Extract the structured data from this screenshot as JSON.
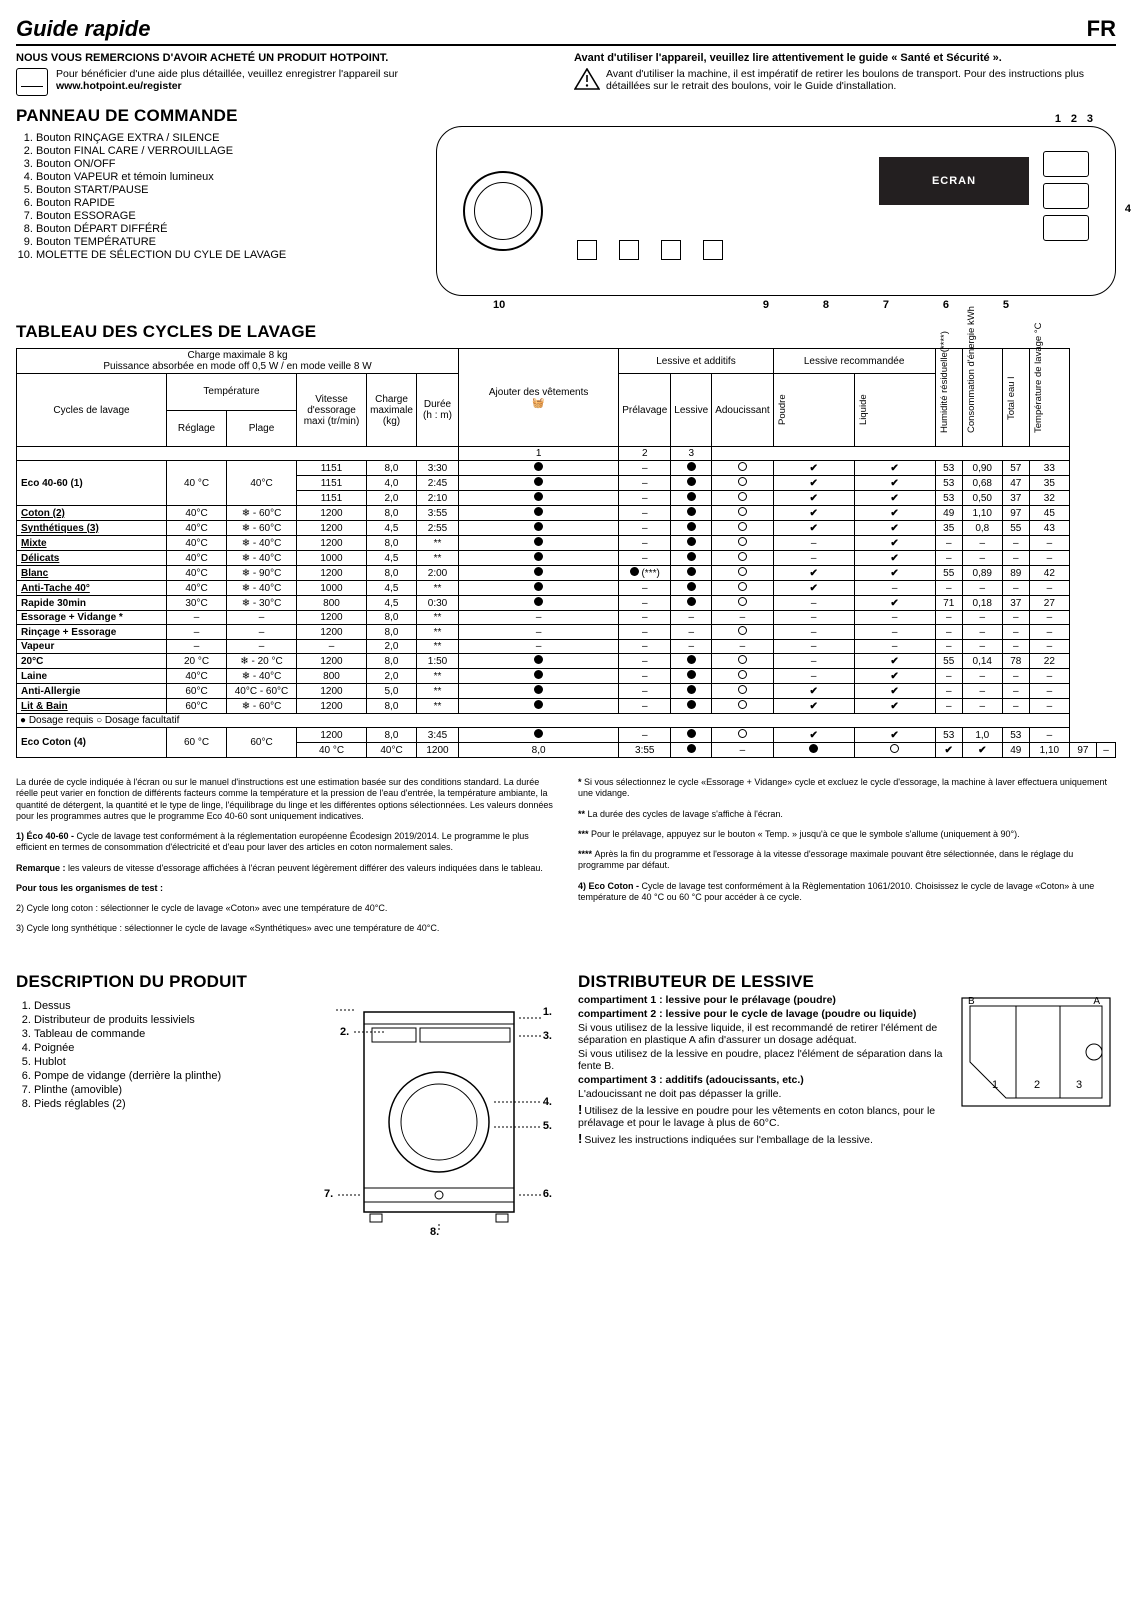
{
  "header": {
    "title": "Guide rapide",
    "lang": "FR"
  },
  "thanks": {
    "line1": "NOUS VOUS REMERCIONS D'AVOIR ACHETÉ UN PRODUIT HOTPOINT.",
    "reg_text": "Pour bénéficier d'une aide plus détaillée, veuillez enregistrer l'appareil sur",
    "reg_url": "www.hotpoint.eu/register"
  },
  "warning": {
    "title": "Avant d'utiliser l'appareil, veuillez lire attentivement le guide « Santé et Sécurité ».",
    "text": "Avant d'utiliser la machine, il est impératif de retirer les boulons de transport. Pour des instructions plus détaillées sur le retrait des boulons, voir le Guide d'installation."
  },
  "panel": {
    "title": "PANNEAU DE COMMANDE",
    "screen_label": "ECRAN",
    "items": [
      "Bouton RINÇAGE EXTRA / SILENCE",
      "Bouton FINAL CARE / VERROUILLAGE",
      "Bouton ON/OFF",
      "Bouton VAPEUR et témoin lumineux",
      "Bouton START/PAUSE",
      "Bouton RAPIDE",
      "Bouton ESSORAGE",
      "Bouton DÉPART DIFFÉRÉ",
      "Bouton TEMPÉRATURE",
      "MOLETTE DE SÉLECTION DU CYLE DE LAVAGE"
    ]
  },
  "cycles_title": "TABLEAU DES CYCLES DE LAVAGE",
  "table": {
    "max_load": "Charge maximale 8 kg",
    "power": "Puissance absorbée en mode off 0,5 W / en mode veille 8 W",
    "h_cycles": "Cycles de lavage",
    "h_temp": "Température",
    "h_temp_set": "Réglage",
    "h_temp_range": "Plage",
    "h_spin": "Vitesse d'essorage maxi (tr/min)",
    "h_load": "Charge maximale (kg)",
    "h_dur": "Durée (h : m)",
    "h_add": "Ajouter des vêtements",
    "h_det_group": "Lessive et additifs",
    "h_pre": "Prélavage",
    "h_main": "Lessive",
    "h_soft": "Adoucissant",
    "h_rec_group": "Lessive recommandée",
    "h_pow": "Poudre",
    "h_liq": "Liquide",
    "h_hum": "Humidité résiduelle(****)",
    "h_energy": "Consommation d'énergie kWh",
    "h_water": "Total eau l",
    "h_wtemp": "Température de lavage °C",
    "c1": "1",
    "c2": "2",
    "c3": "3",
    "legend": "● Dosage requis   ○ Dosage facultatif",
    "rows": [
      {
        "name": "Eco 40-60 (1)",
        "rowspan": 3,
        "t": "40 °C",
        "tr": "40°C",
        "spin": "1151",
        "load": "8,0",
        "dur": "3:30",
        "add": "dot",
        "pre": "–",
        "main": "dot",
        "soft": "circ",
        "pow": "chk",
        "liq": "chk",
        "hum": "53",
        "en": "0,90",
        "wat": "57",
        "wt": "33"
      },
      {
        "name": "",
        "t": "",
        "tr": "",
        "spin": "1151",
        "load": "4,0",
        "dur": "2:45",
        "add": "dot",
        "pre": "–",
        "main": "dot",
        "soft": "circ",
        "pow": "chk",
        "liq": "chk",
        "hum": "53",
        "en": "0,68",
        "wat": "47",
        "wt": "35"
      },
      {
        "name": "",
        "t": "",
        "tr": "",
        "spin": "1151",
        "load": "2,0",
        "dur": "2:10",
        "add": "dot",
        "pre": "–",
        "main": "dot",
        "soft": "circ",
        "pow": "chk",
        "liq": "chk",
        "hum": "53",
        "en": "0,50",
        "wat": "37",
        "wt": "32"
      },
      {
        "name": "Coton (2)",
        "u": true,
        "t": "40°C",
        "tr": "❄ - 60°C",
        "spin": "1200",
        "load": "8,0",
        "dur": "3:55",
        "add": "dot",
        "pre": "–",
        "main": "dot",
        "soft": "circ",
        "pow": "chk",
        "liq": "chk",
        "hum": "49",
        "en": "1,10",
        "wat": "97",
        "wt": "45"
      },
      {
        "name": "Synthétiques (3)",
        "u": true,
        "t": "40°C",
        "tr": "❄ - 60°C",
        "spin": "1200",
        "load": "4,5",
        "dur": "2:55",
        "add": "dot",
        "pre": "–",
        "main": "dot",
        "soft": "circ",
        "pow": "chk",
        "liq": "chk",
        "hum": "35",
        "en": "0,8",
        "wat": "55",
        "wt": "43"
      },
      {
        "name": "Mixte",
        "u": true,
        "t": "40°C",
        "tr": "❄ - 40°C",
        "spin": "1200",
        "load": "8,0",
        "dur": "**",
        "add": "dot",
        "pre": "–",
        "main": "dot",
        "soft": "circ",
        "pow": "–",
        "liq": "chk",
        "hum": "–",
        "en": "–",
        "wat": "–",
        "wt": "–"
      },
      {
        "name": "Délicats",
        "u": true,
        "t": "40°C",
        "tr": "❄ - 40°C",
        "spin": "1000",
        "load": "4,5",
        "dur": "**",
        "add": "dot",
        "pre": "–",
        "main": "dot",
        "soft": "circ",
        "pow": "–",
        "liq": "chk",
        "hum": "–",
        "en": "–",
        "wat": "–",
        "wt": "–"
      },
      {
        "name": "Blanc",
        "u": true,
        "t": "40°C",
        "tr": "❄ - 90°C",
        "spin": "1200",
        "load": "8,0",
        "dur": "2:00",
        "add": "dot",
        "pre": "dot***",
        "main": "dot",
        "soft": "circ",
        "pow": "chk",
        "liq": "chk",
        "hum": "55",
        "en": "0,89",
        "wat": "89",
        "wt": "42"
      },
      {
        "name": "Anti-Tache 40°",
        "u": true,
        "t": "40°C",
        "tr": "❄ - 40°C",
        "spin": "1000",
        "load": "4,5",
        "dur": "**",
        "add": "dot",
        "pre": "–",
        "main": "dot",
        "soft": "circ",
        "pow": "chk",
        "liq": "–",
        "hum": "–",
        "en": "–",
        "wat": "–",
        "wt": "–"
      },
      {
        "name": "Rapide 30min",
        "t": "30°C",
        "tr": "❄ - 30°C",
        "spin": "800",
        "load": "4,5",
        "dur": "0:30",
        "add": "dot",
        "pre": "–",
        "main": "dot",
        "soft": "circ",
        "pow": "–",
        "liq": "chk",
        "hum": "71",
        "en": "0,18",
        "wat": "37",
        "wt": "27"
      },
      {
        "name": "Essorage + Vidange *",
        "t": "–",
        "tr": "–",
        "spin": "1200",
        "load": "8,0",
        "dur": "**",
        "add": "–",
        "pre": "–",
        "main": "–",
        "soft": "–",
        "pow": "–",
        "liq": "–",
        "hum": "–",
        "en": "–",
        "wat": "–",
        "wt": "–"
      },
      {
        "name": "Rinçage + Essorage",
        "t": "–",
        "tr": "–",
        "spin": "1200",
        "load": "8,0",
        "dur": "**",
        "add": "–",
        "pre": "–",
        "main": "–",
        "soft": "circ",
        "pow": "–",
        "liq": "–",
        "hum": "–",
        "en": "–",
        "wat": "–",
        "wt": "–"
      },
      {
        "name": "Vapeur",
        "t": "–",
        "tr": "–",
        "spin": "–",
        "load": "2,0",
        "dur": "**",
        "add": "–",
        "pre": "–",
        "main": "–",
        "soft": "–",
        "pow": "–",
        "liq": "–",
        "hum": "–",
        "en": "–",
        "wat": "–",
        "wt": "–"
      },
      {
        "name": "20°C",
        "t": "20 °C",
        "tr": "❄ - 20 °C",
        "spin": "1200",
        "load": "8,0",
        "dur": "1:50",
        "add": "dot",
        "pre": "–",
        "main": "dot",
        "soft": "circ",
        "pow": "–",
        "liq": "chk",
        "hum": "55",
        "en": "0,14",
        "wat": "78",
        "wt": "22"
      },
      {
        "name": "Laine",
        "t": "40°C",
        "tr": "❄ - 40°C",
        "spin": "800",
        "load": "2,0",
        "dur": "**",
        "add": "dot",
        "pre": "–",
        "main": "dot",
        "soft": "circ",
        "pow": "–",
        "liq": "chk",
        "hum": "–",
        "en": "–",
        "wat": "–",
        "wt": "–"
      },
      {
        "name": "Anti-Allergie",
        "t": "60°C",
        "tr": "40°C - 60°C",
        "spin": "1200",
        "load": "5,0",
        "dur": "**",
        "add": "dot",
        "pre": "–",
        "main": "dot",
        "soft": "circ",
        "pow": "chk",
        "liq": "chk",
        "hum": "–",
        "en": "–",
        "wat": "–",
        "wt": "–"
      },
      {
        "name": "Lit & Bain",
        "u": true,
        "t": "60°C",
        "tr": "❄ - 60°C",
        "spin": "1200",
        "load": "8,0",
        "dur": "**",
        "add": "dot",
        "pre": "–",
        "main": "dot",
        "soft": "circ",
        "pow": "chk",
        "liq": "chk",
        "hum": "–",
        "en": "–",
        "wat": "–",
        "wt": "–"
      },
      {
        "name": "Eco Coton (4)",
        "rowspan": 2,
        "t": "60 °C",
        "tr": "60°C",
        "spin": "1200",
        "load": "8,0",
        "dur": "3:45",
        "add": "dot",
        "pre": "–",
        "main": "dot",
        "soft": "circ",
        "pow": "chk",
        "liq": "chk",
        "hum": "53",
        "en": "1,0",
        "wat": "53",
        "wt": "–"
      },
      {
        "name": "",
        "t": "40 °C",
        "tr": "40°C",
        "spin": "1200",
        "load": "8,0",
        "dur": "3:55",
        "add": "dot",
        "pre": "–",
        "main": "dot",
        "soft": "circ",
        "pow": "chk",
        "liq": "chk",
        "hum": "49",
        "en": "1,10",
        "wat": "97",
        "wt": "–"
      }
    ]
  },
  "foot_left": {
    "p1": "La durée de cycle indiquée à l'écran ou sur le manuel d'instructions est une estimation basée sur des conditions standard. La durée réelle peut varier en fonction de différents facteurs comme la température et la pression de l'eau d'entrée, la température ambiante, la quantité de détergent, la quantité et le type de linge, l'équilibrage du linge et les différentes options sélectionnées. Les valeurs données pour les programmes autres que le programme Eco 40-60 sont uniquement indicatives.",
    "p2a": "1) Éco 40-60 - ",
    "p2b": "Cycle de lavage test conformément à la réglementation européenne Écodesign 2019/2014. Le programme le plus efficient en termes de consommation d'électricité et d'eau pour laver des articles en coton normalement sales.",
    "p3a": "Remarque : ",
    "p3b": "les valeurs de vitesse d'essorage affichées à l'écran peuvent légèrement différer des valeurs indiquées dans le tableau.",
    "p4": "Pour tous les organismes de test :",
    "p5": "2) Cycle long coton : sélectionner le cycle de lavage «Coton» avec une température de 40°C.",
    "p6": "3) Cycle long synthétique : sélectionner le cycle de lavage «Synthétiques» avec une température de 40°C."
  },
  "foot_right": {
    "s1a": "* ",
    "s1b": "Si vous sélectionnez le cycle «Essorage + Vidange» cycle et excluez le cycle d'essorage, la machine à laver effectuera uniquement une vidange.",
    "s2a": "** ",
    "s2b": "La durée des cycles de lavage s'affiche à l'écran.",
    "s3a": "*** ",
    "s3b": "Pour le prélavage, appuyez sur le bouton « Temp. » jusqu'à ce que le symbole s'allume (uniquement à 90°).",
    "s4a": "**** ",
    "s4b": "Après la fin du programme et l'essorage à la vitesse d'essorage maximale pouvant être sélectionnée, dans le réglage du programme par défaut.",
    "s5a": "4) Eco Coton - ",
    "s5b": "Cycle de lavage test conformément à la Règlementation 1061/2010. Choisissez le cycle de lavage «Coton» à une température de 40 °C ou 60 °C pour accéder à ce cycle."
  },
  "desc": {
    "title": "DESCRIPTION DU PRODUIT",
    "parts": [
      "Dessus",
      "Distributeur de produits lessiviels",
      "Tableau de commande",
      "Poignée",
      "Hublot",
      "Pompe de vidange (derrière la plinthe)",
      "Plinthe (amovible)",
      "Pieds réglables (2)"
    ]
  },
  "dist": {
    "title": "DISTRIBUTEUR DE LESSIVE",
    "c1": "compartiment 1 : lessive pour le prélavage (poudre)",
    "c2": "compartiment 2 : lessive pour le cycle de lavage (poudre ou liquide)",
    "c2_txt": "Si vous utilisez de la lessive liquide, il est recommandé de retirer l'élément de séparation en plastique A afin d'assurer un dosage adéquat.",
    "c2_txt2": "Si vous utilisez de la lessive en poudre, placez l'élément de séparation dans la fente B.",
    "c3": "compartiment 3 : additifs (adoucissants, etc.)",
    "c3_txt": "L'adoucissant ne doit pas dépasser la grille.",
    "warn1": "Utilisez de la lessive en poudre pour les vêtements en coton blancs, pour le prélavage et pour le lavage à plus de 60°C.",
    "warn2": "Suivez les instructions indiquées sur l'emballage de la lessive.",
    "labels": {
      "a": "A",
      "b": "B"
    }
  }
}
